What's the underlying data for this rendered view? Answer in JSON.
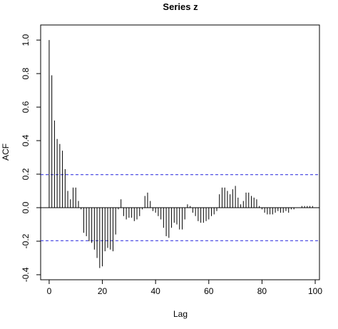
{
  "chart_data": {
    "type": "stem",
    "title": "Series  z",
    "x_label": "Lag",
    "y_label": "ACF",
    "x": [
      0,
      1,
      2,
      3,
      4,
      5,
      6,
      7,
      8,
      9,
      10,
      11,
      12,
      13,
      14,
      15,
      16,
      17,
      18,
      19,
      20,
      21,
      22,
      23,
      24,
      25,
      26,
      27,
      28,
      29,
      30,
      31,
      32,
      33,
      34,
      35,
      36,
      37,
      38,
      39,
      40,
      41,
      42,
      43,
      44,
      45,
      46,
      47,
      48,
      49,
      50,
      51,
      52,
      53,
      54,
      55,
      56,
      57,
      58,
      59,
      60,
      61,
      62,
      63,
      64,
      65,
      66,
      67,
      68,
      69,
      70,
      71,
      72,
      73,
      74,
      75,
      76,
      77,
      78,
      79,
      80,
      81,
      82,
      83,
      84,
      85,
      86,
      87,
      88,
      89,
      90,
      91,
      92,
      93,
      94,
      95,
      96,
      97,
      98,
      99,
      100
    ],
    "values": [
      1.0,
      0.79,
      0.52,
      0.41,
      0.38,
      0.34,
      0.23,
      0.1,
      0.05,
      0.12,
      0.12,
      0.04,
      -0.01,
      -0.15,
      -0.17,
      -0.2,
      -0.21,
      -0.25,
      -0.3,
      -0.36,
      -0.35,
      -0.26,
      -0.24,
      -0.25,
      -0.26,
      -0.16,
      -0.01,
      0.05,
      -0.05,
      -0.07,
      -0.06,
      -0.06,
      -0.08,
      -0.07,
      -0.05,
      -0.01,
      0.07,
      0.09,
      0.04,
      -0.02,
      -0.03,
      -0.05,
      -0.07,
      -0.12,
      -0.17,
      -0.18,
      -0.12,
      -0.09,
      -0.1,
      -0.13,
      -0.13,
      -0.07,
      0.02,
      0.01,
      -0.03,
      -0.05,
      -0.08,
      -0.09,
      -0.09,
      -0.08,
      -0.07,
      -0.05,
      -0.04,
      -0.02,
      0.08,
      0.12,
      0.12,
      0.1,
      0.08,
      0.11,
      0.13,
      0.06,
      0.02,
      0.04,
      0.09,
      0.09,
      0.07,
      0.06,
      0.05,
      0.01,
      -0.01,
      -0.03,
      -0.04,
      -0.04,
      -0.04,
      -0.03,
      -0.02,
      -0.03,
      -0.03,
      -0.02,
      -0.03,
      -0.01,
      -0.01,
      0,
      0,
      0.01,
      0.01,
      0.01,
      0.01,
      0.01,
      0
    ],
    "color": "#000000",
    "conf_lines": [
      0.197,
      -0.197
    ],
    "conf_color": "#2222dd",
    "xlim": [
      -3.2,
      101.6
    ],
    "ylim": [
      -0.43,
      1.09
    ],
    "xticks": [
      0,
      20,
      40,
      60,
      80,
      100
    ],
    "yticks": [
      -0.4,
      -0.2,
      {
        "value": 0,
        "label": "0.0"
      },
      0.2,
      0.4,
      0.6,
      0.8,
      {
        "value": 1,
        "label": "1.0"
      }
    ]
  }
}
